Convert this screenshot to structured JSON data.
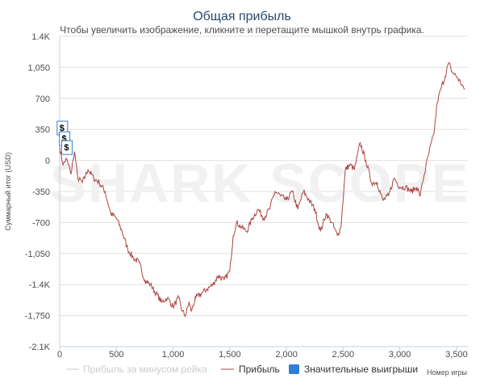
{
  "chart_data": {
    "type": "line",
    "title": "Общая прибыль",
    "subtitle": "Чтобы увеличить изображение, кликните и перетащите мышкой внутрь графика.",
    "ylabel": "Суммарный итог (USD)",
    "xlabel": "Номер игры",
    "watermark": "SHARK SCOPE",
    "xlim": [
      0,
      3600
    ],
    "ylim": [
      -2100,
      1400
    ],
    "x_ticks": [
      0,
      500,
      1000,
      1500,
      2000,
      2500,
      3000,
      3500
    ],
    "x_tick_labels": [
      "0",
      "500",
      "1,000",
      "1,500",
      "2,000",
      "2,500",
      "3,000",
      "3,500"
    ],
    "y_ticks": [
      1400,
      1050,
      700,
      350,
      0,
      -350,
      -700,
      -1050,
      -1400,
      -1750,
      -2100
    ],
    "y_tick_labels": [
      "1.4K",
      "1,050",
      "700",
      "350",
      "0",
      "-350",
      "-700",
      "-1,050",
      "-1.4K",
      "-1,750",
      "-2.1K"
    ],
    "grid": true,
    "legend_position": "bottom",
    "legend": [
      {
        "label": "Прибыль за минусом рейка",
        "color": "#cccccc",
        "marker": "line"
      },
      {
        "label": "Прибыль",
        "color": "#aa4643",
        "marker": "line"
      },
      {
        "label": "Значительные выигрыши",
        "color": "#2f7ed8",
        "marker": "square"
      }
    ],
    "series": [
      {
        "name": "Прибыль",
        "color": "#aa4643",
        "x": [
          0,
          30,
          60,
          100,
          130,
          160,
          200,
          250,
          300,
          350,
          400,
          450,
          500,
          550,
          600,
          650,
          700,
          750,
          800,
          850,
          900,
          950,
          1000,
          1050,
          1080,
          1110,
          1140,
          1160,
          1200,
          1250,
          1300,
          1350,
          1400,
          1450,
          1500,
          1530,
          1560,
          1600,
          1650,
          1700,
          1750,
          1800,
          1850,
          1900,
          1950,
          2000,
          2050,
          2100,
          2150,
          2200,
          2250,
          2300,
          2350,
          2400,
          2450,
          2480,
          2520,
          2560,
          2600,
          2650,
          2700,
          2750,
          2800,
          2850,
          2900,
          2950,
          3000,
          3050,
          3100,
          3150,
          3180,
          3200,
          3250,
          3300,
          3330,
          3360,
          3400,
          3430,
          3460,
          3500,
          3550,
          3570
        ],
        "y": [
          150,
          -50,
          20,
          -150,
          100,
          -200,
          -250,
          -100,
          -200,
          -250,
          -350,
          -600,
          -650,
          -800,
          -1000,
          -1100,
          -1150,
          -1350,
          -1400,
          -1500,
          -1600,
          -1550,
          -1650,
          -1550,
          -1700,
          -1750,
          -1600,
          -1700,
          -1550,
          -1500,
          -1450,
          -1400,
          -1300,
          -1350,
          -1250,
          -850,
          -700,
          -750,
          -800,
          -650,
          -550,
          -650,
          -550,
          -350,
          -400,
          -450,
          -350,
          -550,
          -350,
          -450,
          -550,
          -800,
          -600,
          -700,
          -850,
          -750,
          -100,
          -50,
          -100,
          200,
          0,
          -250,
          -250,
          -450,
          -400,
          -200,
          -300,
          -300,
          -350,
          -300,
          -400,
          -250,
          50,
          300,
          650,
          800,
          950,
          1100,
          1000,
          950,
          850,
          800
        ]
      }
    ],
    "big_wins": [
      {
        "x": 20,
        "y": 370,
        "label": "$"
      },
      {
        "x": 40,
        "y": 250,
        "label": "$"
      },
      {
        "x": 60,
        "y": 150,
        "label": "$"
      }
    ]
  }
}
